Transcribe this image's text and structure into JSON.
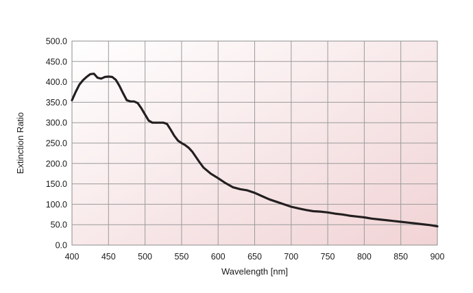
{
  "chart_data": {
    "type": "line",
    "xlabel": "Wavelength [nm]",
    "ylabel": "Extinction Ratio",
    "xlim": [
      400,
      900
    ],
    "ylim": [
      0,
      500
    ],
    "x_ticks": [
      400,
      450,
      500,
      550,
      600,
      650,
      700,
      750,
      800,
      850,
      900
    ],
    "x_tick_labels": [
      "400",
      "450",
      "500",
      "550",
      "600",
      "650",
      "700",
      "750",
      "800",
      "850",
      "900"
    ],
    "y_ticks": [
      0,
      50,
      100,
      150,
      200,
      250,
      300,
      350,
      400,
      450,
      500
    ],
    "y_tick_labels": [
      "0.0",
      "50.0",
      "100.0",
      "150.0",
      "200.0",
      "250.0",
      "300.0",
      "350.0",
      "400.0",
      "450.0",
      "500.0"
    ],
    "grid": true,
    "background_gradient": [
      "#ffffff",
      "#f1d3d5"
    ],
    "line_color": "#231f20",
    "series": [
      {
        "x": [
          400,
          405,
          410,
          415,
          420,
          425,
          430,
          435,
          440,
          445,
          450,
          455,
          460,
          465,
          470,
          475,
          480,
          485,
          490,
          495,
          500,
          505,
          510,
          515,
          520,
          525,
          530,
          535,
          540,
          545,
          550,
          555,
          560,
          565,
          570,
          575,
          580,
          590,
          600,
          610,
          620,
          630,
          640,
          650,
          660,
          670,
          680,
          690,
          700,
          710,
          720,
          730,
          740,
          750,
          760,
          770,
          780,
          790,
          800,
          810,
          820,
          830,
          840,
          850,
          860,
          870,
          880,
          890,
          900
        ],
        "values": [
          355,
          375,
          393,
          404,
          412,
          419,
          420,
          410,
          408,
          412,
          413,
          412,
          405,
          390,
          372,
          355,
          352,
          352,
          348,
          335,
          320,
          305,
          300,
          300,
          300,
          300,
          297,
          283,
          268,
          256,
          250,
          245,
          238,
          228,
          215,
          202,
          190,
          175,
          164,
          152,
          142,
          137,
          134,
          128,
          120,
          112,
          106,
          100,
          94,
          90,
          86,
          83,
          82,
          80,
          77,
          75,
          72,
          70,
          68,
          65,
          63,
          61,
          59,
          57,
          55,
          53,
          51,
          49,
          46
        ]
      }
    ]
  }
}
